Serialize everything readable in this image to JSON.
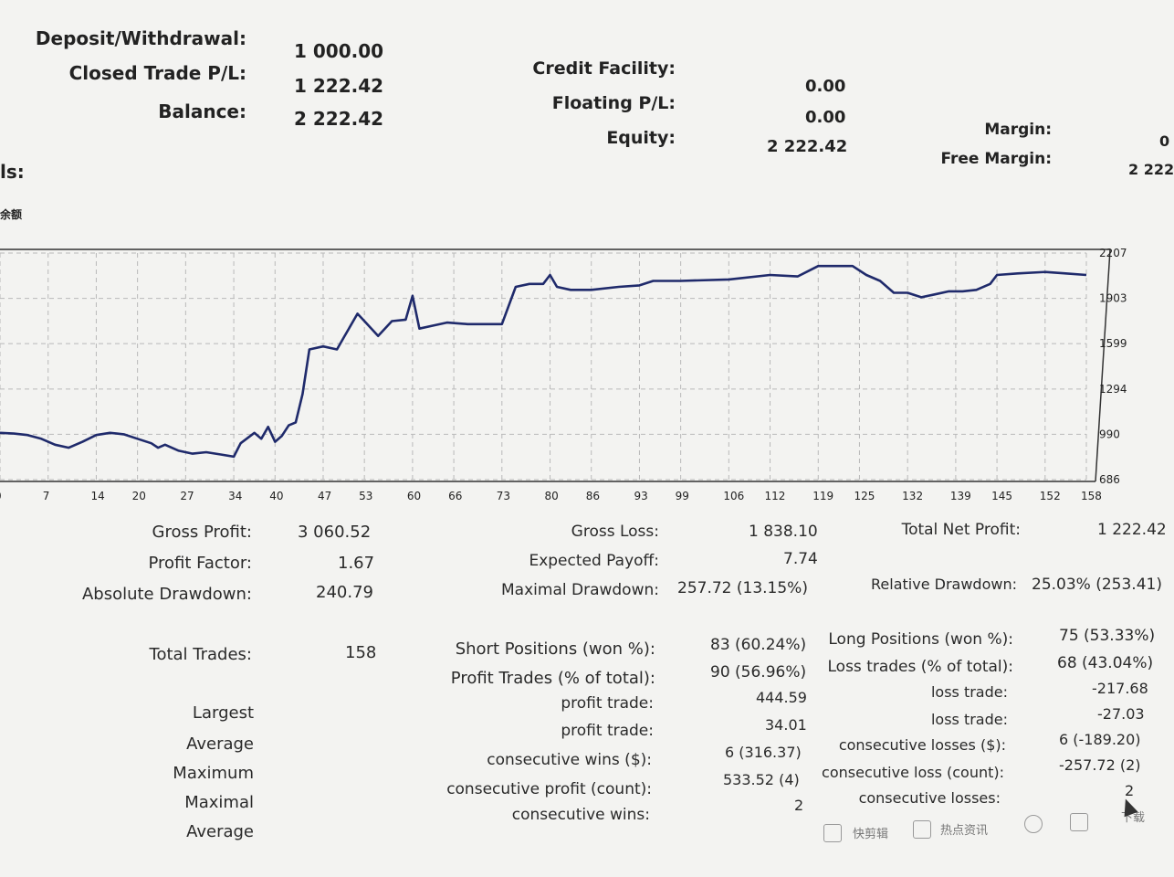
{
  "summary": {
    "deposit_label": "Deposit/Withdrawal:",
    "deposit_value": "1 000.00",
    "closed_label": "Closed Trade P/L:",
    "closed_value": "1 222.42",
    "balance_label": "Balance:",
    "balance_value": "2 222.42",
    "credit_label": "Credit Facility:",
    "credit_value": "0.00",
    "floating_label": "Floating P/L:",
    "floating_value": "0.00",
    "equity_label": "Equity:",
    "equity_value": "2 222.42",
    "margin_label": "Margin:",
    "margin_value": "0",
    "free_margin_label": "Free Margin:",
    "free_margin_value": "2 222",
    "details_label": "ls:",
    "chart_header_label": "余额"
  },
  "chart_data": {
    "type": "line",
    "y_ticks": [
      "2207",
      "1903",
      "1599",
      "1294",
      "990",
      "686"
    ],
    "x_ticks": [
      "0",
      "7",
      "14",
      "20",
      "27",
      "34",
      "40",
      "47",
      "53",
      "60",
      "66",
      "73",
      "80",
      "86",
      "93",
      "99",
      "106",
      "112",
      "119",
      "125",
      "132",
      "139",
      "145",
      "152",
      "158"
    ],
    "ylim": [
      686,
      2207
    ],
    "xlim": [
      0,
      158
    ],
    "grid": true,
    "series": [
      {
        "color": "#1f2a6b",
        "points": [
          [
            0,
            1000
          ],
          [
            2,
            995
          ],
          [
            4,
            985
          ],
          [
            6,
            960
          ],
          [
            8,
            920
          ],
          [
            10,
            900
          ],
          [
            12,
            940
          ],
          [
            14,
            985
          ],
          [
            16,
            1000
          ],
          [
            18,
            990
          ],
          [
            20,
            960
          ],
          [
            22,
            930
          ],
          [
            23,
            900
          ],
          [
            24,
            920
          ],
          [
            26,
            880
          ],
          [
            28,
            860
          ],
          [
            30,
            870
          ],
          [
            32,
            855
          ],
          [
            34,
            840
          ],
          [
            35,
            930
          ],
          [
            37,
            1000
          ],
          [
            38,
            960
          ],
          [
            39,
            1040
          ],
          [
            40,
            940
          ],
          [
            41,
            980
          ],
          [
            42,
            1050
          ],
          [
            43,
            1070
          ],
          [
            44,
            1260
          ],
          [
            45,
            1560
          ],
          [
            47,
            1580
          ],
          [
            49,
            1560
          ],
          [
            50,
            1640
          ],
          [
            52,
            1800
          ],
          [
            53,
            1750
          ],
          [
            55,
            1650
          ],
          [
            57,
            1750
          ],
          [
            59,
            1760
          ],
          [
            60,
            1920
          ],
          [
            61,
            1700
          ],
          [
            63,
            1720
          ],
          [
            65,
            1740
          ],
          [
            68,
            1730
          ],
          [
            73,
            1730
          ],
          [
            75,
            1980
          ],
          [
            77,
            2000
          ],
          [
            79,
            2000
          ],
          [
            80,
            2060
          ],
          [
            81,
            1980
          ],
          [
            83,
            1960
          ],
          [
            86,
            1960
          ],
          [
            90,
            1980
          ],
          [
            93,
            1990
          ],
          [
            95,
            2020
          ],
          [
            99,
            2020
          ],
          [
            106,
            2030
          ],
          [
            112,
            2060
          ],
          [
            116,
            2050
          ],
          [
            119,
            2120
          ],
          [
            121,
            2120
          ],
          [
            124,
            2120
          ],
          [
            126,
            2060
          ],
          [
            128,
            2020
          ],
          [
            130,
            1940
          ],
          [
            132,
            1940
          ],
          [
            134,
            1910
          ],
          [
            136,
            1930
          ],
          [
            138,
            1950
          ],
          [
            140,
            1950
          ],
          [
            142,
            1960
          ],
          [
            144,
            2000
          ],
          [
            145,
            2060
          ],
          [
            148,
            2070
          ],
          [
            152,
            2080
          ],
          [
            155,
            2070
          ],
          [
            158,
            2060
          ]
        ]
      }
    ]
  },
  "stats": {
    "gross_profit_label": "Gross Profit:",
    "gross_profit_value": "3 060.52",
    "profit_factor_label": "Profit Factor:",
    "profit_factor_value": "1.67",
    "abs_drawdown_label": "Absolute Drawdown:",
    "abs_drawdown_value": "240.79",
    "gross_loss_label": "Gross Loss:",
    "gross_loss_value": "1 838.10",
    "expected_payoff_label": "Expected Payoff:",
    "expected_payoff_value": "7.74",
    "max_drawdown_label": "Maximal Drawdown:",
    "max_drawdown_value": "257.72 (13.15%)",
    "total_net_label": "Total Net Profit:",
    "total_net_value": "1 222.42",
    "rel_drawdown_label": "Relative Drawdown:",
    "rel_drawdown_value": "25.03% (253.41)",
    "total_trades_label": "Total Trades:",
    "total_trades_value": "158",
    "short_label": "Short Positions (won %):",
    "short_value": "83 (60.24%)",
    "profit_trades_label": "Profit Trades (% of total):",
    "profit_trades_value": "90 (56.96%)",
    "long_label": "Long Positions (won %):",
    "long_value": "75 (53.33%)",
    "loss_trades_label": "Loss trades (% of total):",
    "loss_trades_value": "68 (43.04%)",
    "largest_label": "Largest",
    "average_label": "Average",
    "maximum_label": "Maximum",
    "maximal_label": "Maximal",
    "average2_label": "Average",
    "largest_profit_label": "profit trade:",
    "largest_profit_value": "444.59",
    "average_profit_label": "profit trade:",
    "average_profit_value": "34.01",
    "max_cons_wins_label": "consecutive wins ($):",
    "max_cons_wins_value": "6 (316.37)",
    "maximal_cons_profit_label": "consecutive profit (count):",
    "maximal_cons_profit_value": "533.52 (4)",
    "avg_cons_wins_label": "consecutive wins:",
    "avg_cons_wins_value": "2",
    "largest_loss_label": "loss trade:",
    "largest_loss_value": "-217.68",
    "average_loss_label": "loss trade:",
    "average_loss_value": "-27.03",
    "max_cons_losses_label": "consecutive losses ($):",
    "max_cons_losses_value": "6 (-189.20)",
    "maximal_cons_loss_label": "consecutive loss (count):",
    "maximal_cons_loss_value": "-257.72 (2)",
    "avg_cons_losses_label": "consecutive losses:",
    "avg_cons_losses_value": "2"
  },
  "taskbar": {
    "item1": "快剪辑",
    "item2": "热点资讯",
    "item3": "下载"
  }
}
